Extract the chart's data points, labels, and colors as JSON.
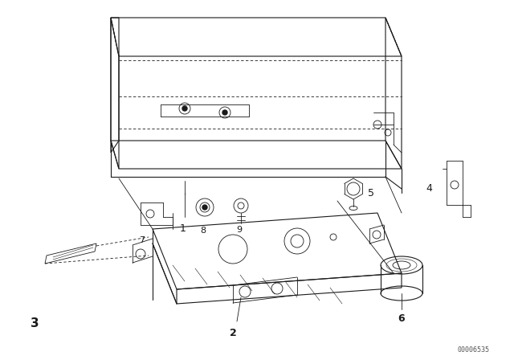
{
  "background_color": "#ffffff",
  "line_color": "#1a1a1a",
  "figure_width": 6.4,
  "figure_height": 4.48,
  "dpi": 100,
  "watermark": "00006535"
}
